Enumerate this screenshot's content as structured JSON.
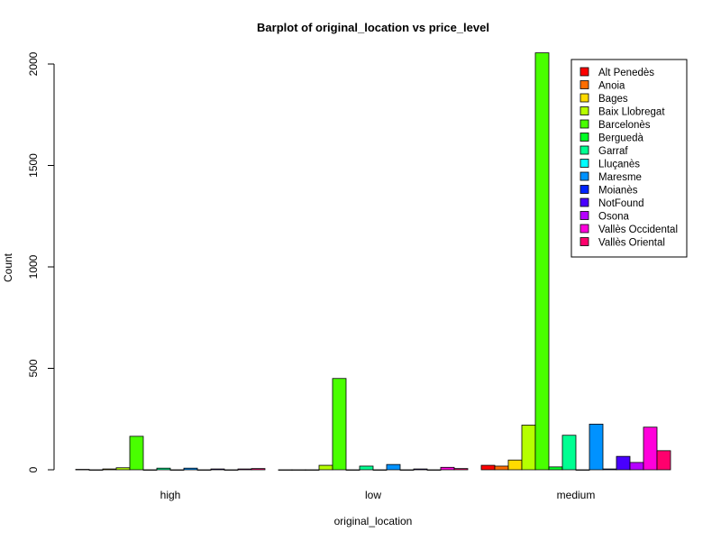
{
  "chart_data": {
    "type": "bar",
    "title": "Barplot of original_location vs price_level",
    "xlabel": "original_location",
    "ylabel": "Count",
    "categories": [
      "high",
      "low",
      "medium"
    ],
    "ylim": [
      0,
      2000
    ],
    "yticks": [
      0,
      500,
      1000,
      1500,
      2000
    ],
    "legend_position": "top-right",
    "series": [
      {
        "name": "Alt Penedès",
        "color": "#FF0000",
        "values": [
          2,
          0,
          22
        ]
      },
      {
        "name": "Anoia",
        "color": "#FF6D00",
        "values": [
          0,
          0,
          18
        ]
      },
      {
        "name": "Bages",
        "color": "#FFDB00",
        "values": [
          4,
          0,
          48
        ]
      },
      {
        "name": "Baix Llobregat",
        "color": "#B6FF00",
        "values": [
          10,
          22,
          220
        ]
      },
      {
        "name": "Barcelonès",
        "color": "#49FF00",
        "values": [
          165,
          450,
          2055
        ]
      },
      {
        "name": "Berguedà",
        "color": "#00FF24",
        "values": [
          0,
          0,
          14
        ]
      },
      {
        "name": "Garraf",
        "color": "#00FF92",
        "values": [
          8,
          18,
          170
        ]
      },
      {
        "name": "Lluçanès",
        "color": "#00FFFF",
        "values": [
          0,
          0,
          0
        ]
      },
      {
        "name": "Maresme",
        "color": "#0092FF",
        "values": [
          8,
          26,
          225
        ]
      },
      {
        "name": "Moianès",
        "color": "#0024FF",
        "values": [
          0,
          0,
          4
        ]
      },
      {
        "name": "NotFound",
        "color": "#4900FF",
        "values": [
          4,
          4,
          66
        ]
      },
      {
        "name": "Osona",
        "color": "#B600FF",
        "values": [
          0,
          0,
          36
        ]
      },
      {
        "name": "Vallès Occidental",
        "color": "#FF00DB",
        "values": [
          4,
          12,
          210
        ]
      },
      {
        "name": "Vallès Oriental",
        "color": "#FF006D",
        "values": [
          6,
          6,
          94
        ]
      }
    ]
  }
}
